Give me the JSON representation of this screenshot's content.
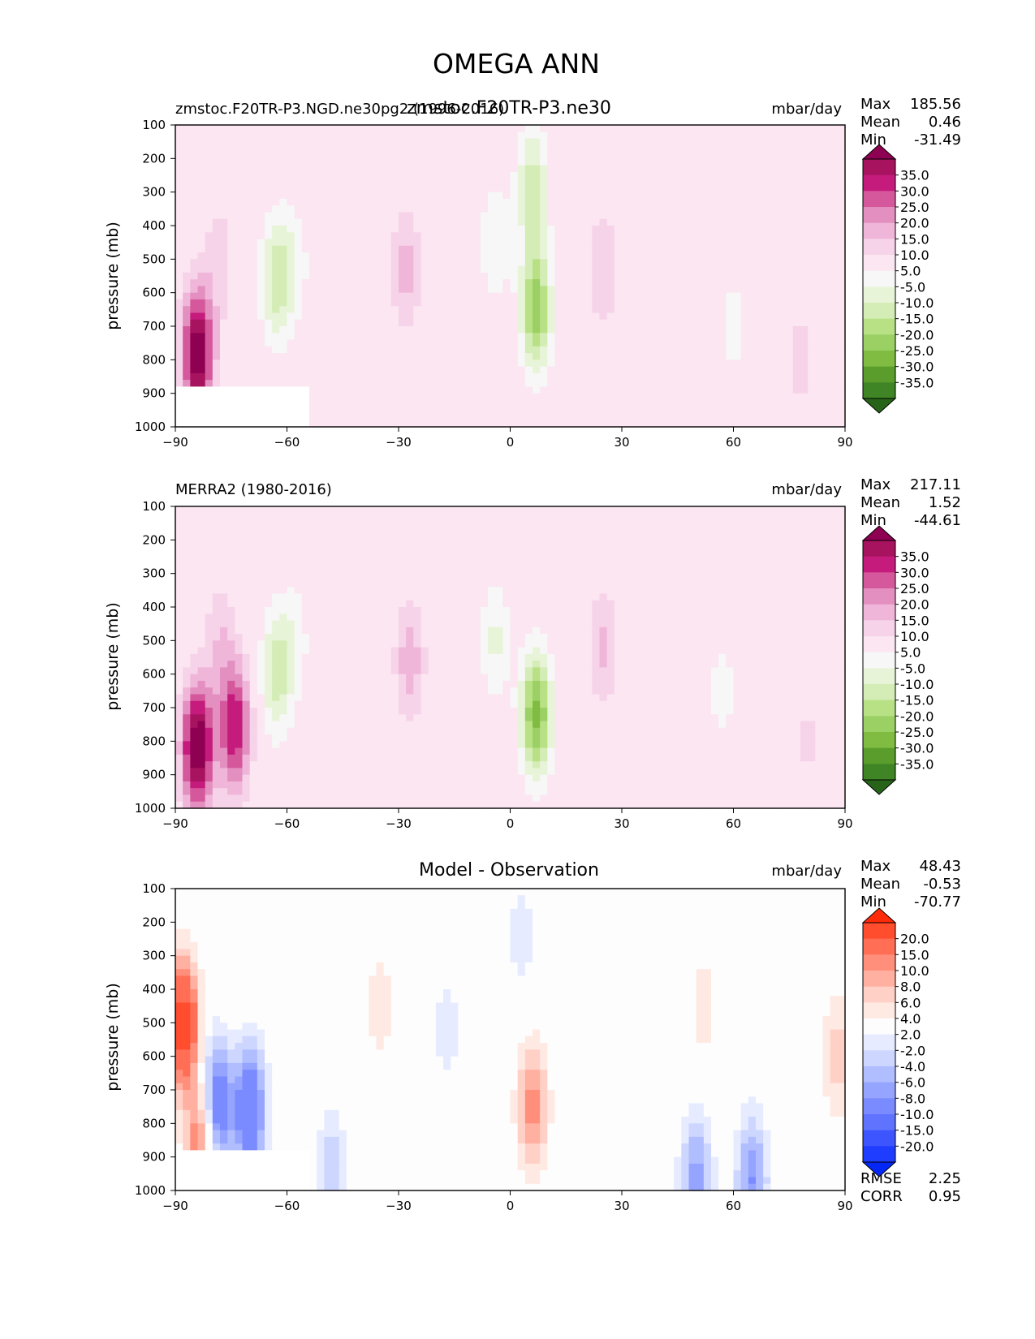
{
  "figure": {
    "title": "OMEGA ANN"
  },
  "chart_data": [
    {
      "type": "contour",
      "left_title": "zmstoc.F20TR-P3.NGD.ne30pg2 (1996-2016)",
      "center_title": "zmstoc.F20TR-P3.ne30",
      "units": "mbar/day",
      "ylabel": "pressure (mb)",
      "xlim": [
        -90,
        90
      ],
      "ylim": [
        1000,
        100
      ],
      "xticks": [
        "−90",
        "−60",
        "−30",
        "0",
        "30",
        "60",
        "90"
      ],
      "yticks": [
        "100",
        "200",
        "300",
        "400",
        "500",
        "600",
        "700",
        "800",
        "900",
        "1000"
      ],
      "stats": {
        "max_label": "Max",
        "max": "185.56",
        "mean_label": "Mean",
        "mean": "0.46",
        "min_label": "Min",
        "min": "-31.49"
      },
      "colorbar": {
        "labels": [
          "35.0",
          "30.0",
          "25.0",
          "20.0",
          "15.0",
          "10.0",
          "5.0",
          "-5.0",
          "-10.0",
          "-15.0",
          "-20.0",
          "-25.0",
          "-30.0",
          "-35.0"
        ],
        "colors": [
          "#8e0152",
          "#a8135f",
          "#c51b7d",
          "#d6589c",
          "#e38fc0",
          "#f0b6da",
          "#f6d3e9",
          "#fbe6f1",
          "#f7f7f7",
          "#e8f4d8",
          "#d4ecb5",
          "#b8e186",
          "#9bd064",
          "#7fbc41",
          "#5a9d2d",
          "#3f8425",
          "#276419"
        ],
        "over": "#8e0152",
        "under": "#276419"
      },
      "features": [
        {
          "lat": -84,
          "p": 780,
          "value": 40
        },
        {
          "lat": -78,
          "p": 500,
          "value": 8
        },
        {
          "lat": -63,
          "p": 560,
          "value": -18
        },
        {
          "lat": -58,
          "p": 520,
          "value": -8
        },
        {
          "lat": -28,
          "p": 530,
          "value": 12
        },
        {
          "lat": -4,
          "p": 450,
          "value": -10
        },
        {
          "lat": 7,
          "p": 650,
          "value": -28
        },
        {
          "lat": 6,
          "p": 280,
          "value": -18
        },
        {
          "lat": 25,
          "p": 530,
          "value": 10
        },
        {
          "lat": 60,
          "p": 700,
          "value": -7
        },
        {
          "lat": 78,
          "p": 800,
          "value": 7
        }
      ],
      "mask": {
        "lat_max": -54,
        "p_min": 870
      }
    },
    {
      "type": "contour",
      "left_title": "MERRA2 (1980-2016)",
      "center_title": "",
      "units": "mbar/day",
      "ylabel": "pressure (mb)",
      "xlim": [
        -90,
        90
      ],
      "ylim": [
        1000,
        100
      ],
      "xticks": [
        "−90",
        "−60",
        "−30",
        "0",
        "30",
        "60",
        "90"
      ],
      "yticks": [
        "100",
        "200",
        "300",
        "400",
        "500",
        "600",
        "700",
        "800",
        "900",
        "1000"
      ],
      "stats": {
        "max_label": "Max",
        "max": "217.11",
        "mean_label": "Mean",
        "mean": "1.52",
        "min_label": "Min",
        "min": "-44.61"
      },
      "colorbar": {
        "labels": [
          "35.0",
          "30.0",
          "25.0",
          "20.0",
          "15.0",
          "10.0",
          "5.0",
          "-5.0",
          "-10.0",
          "-15.0",
          "-20.0",
          "-25.0",
          "-30.0",
          "-35.0"
        ],
        "colors": [
          "#8e0152",
          "#a8135f",
          "#c51b7d",
          "#d6589c",
          "#e38fc0",
          "#f0b6da",
          "#f6d3e9",
          "#fbe6f1",
          "#f7f7f7",
          "#e8f4d8",
          "#d4ecb5",
          "#b8e186",
          "#9bd064",
          "#7fbc41",
          "#5a9d2d",
          "#3f8425",
          "#276419"
        ],
        "over": "#8e0152",
        "under": "#276419"
      },
      "features": [
        {
          "lat": -84,
          "p": 820,
          "value": 42
        },
        {
          "lat": -74,
          "p": 760,
          "value": 30
        },
        {
          "lat": -78,
          "p": 500,
          "value": 9
        },
        {
          "lat": -63,
          "p": 600,
          "value": -17
        },
        {
          "lat": -58,
          "p": 500,
          "value": -8
        },
        {
          "lat": -27,
          "p": 560,
          "value": 13
        },
        {
          "lat": -4,
          "p": 500,
          "value": -11
        },
        {
          "lat": 7,
          "p": 720,
          "value": -32
        },
        {
          "lat": 25,
          "p": 520,
          "value": 11
        },
        {
          "lat": 57,
          "p": 650,
          "value": -7
        },
        {
          "lat": 80,
          "p": 800,
          "value": 6
        }
      ],
      "mask": null
    },
    {
      "type": "contour",
      "left_title": "",
      "center_title": "Model - Observation",
      "units": "mbar/day",
      "ylabel": "pressure (mb)",
      "xlim": [
        -90,
        90
      ],
      "ylim": [
        1000,
        100
      ],
      "xticks": [
        "−90",
        "−60",
        "−30",
        "0",
        "30",
        "60",
        "90"
      ],
      "yticks": [
        "100",
        "200",
        "300",
        "400",
        "500",
        "600",
        "700",
        "800",
        "900",
        "1000"
      ],
      "stats": {
        "max_label": "Max",
        "max": "48.43",
        "mean_label": "Mean",
        "mean": "-0.53",
        "min_label": "Min",
        "min": "-70.77"
      },
      "extra_stats": {
        "rmse_label": "RMSE",
        "rmse": "2.25",
        "corr_label": "CORR",
        "corr": "0.95"
      },
      "colorbar": {
        "labels": [
          "20.0",
          "15.0",
          "10.0",
          "8.0",
          "6.0",
          "4.0",
          "2.0",
          "-2.0",
          "-4.0",
          "-6.0",
          "-8.0",
          "-10.0",
          "-15.0",
          "-20.0"
        ],
        "colors": [
          "#ff2a08",
          "#ff4d2e",
          "#ff6e55",
          "#ff8f7b",
          "#ffb0a0",
          "#ffd1c6",
          "#ffe9e3",
          "#fdfdfd",
          "#e6ebff",
          "#cdd6ff",
          "#b0bdff",
          "#94a4ff",
          "#7a8bff",
          "#5f73ff",
          "#3d55ff",
          "#1f3dff",
          "#0328f6"
        ],
        "over": "#ff2a08",
        "under": "#0328f6"
      },
      "features": [
        {
          "lat": -88,
          "p": 500,
          "value": 18
        },
        {
          "lat": -79,
          "p": 750,
          "value": -15
        },
        {
          "lat": -70,
          "p": 760,
          "value": -15
        },
        {
          "lat": -83,
          "p": 850,
          "value": 12
        },
        {
          "lat": -35,
          "p": 450,
          "value": 3
        },
        {
          "lat": -17,
          "p": 520,
          "value": -3
        },
        {
          "lat": 6,
          "p": 750,
          "value": 9
        },
        {
          "lat": 3,
          "p": 250,
          "value": -3
        },
        {
          "lat": 50,
          "p": 960,
          "value": -9
        },
        {
          "lat": 65,
          "p": 970,
          "value": -10
        },
        {
          "lat": -48,
          "p": 960,
          "value": -6
        },
        {
          "lat": 52,
          "p": 450,
          "value": 3
        },
        {
          "lat": 88,
          "p": 600,
          "value": 5
        }
      ],
      "mask": {
        "lat_max": -54,
        "p_min": 870
      }
    }
  ]
}
